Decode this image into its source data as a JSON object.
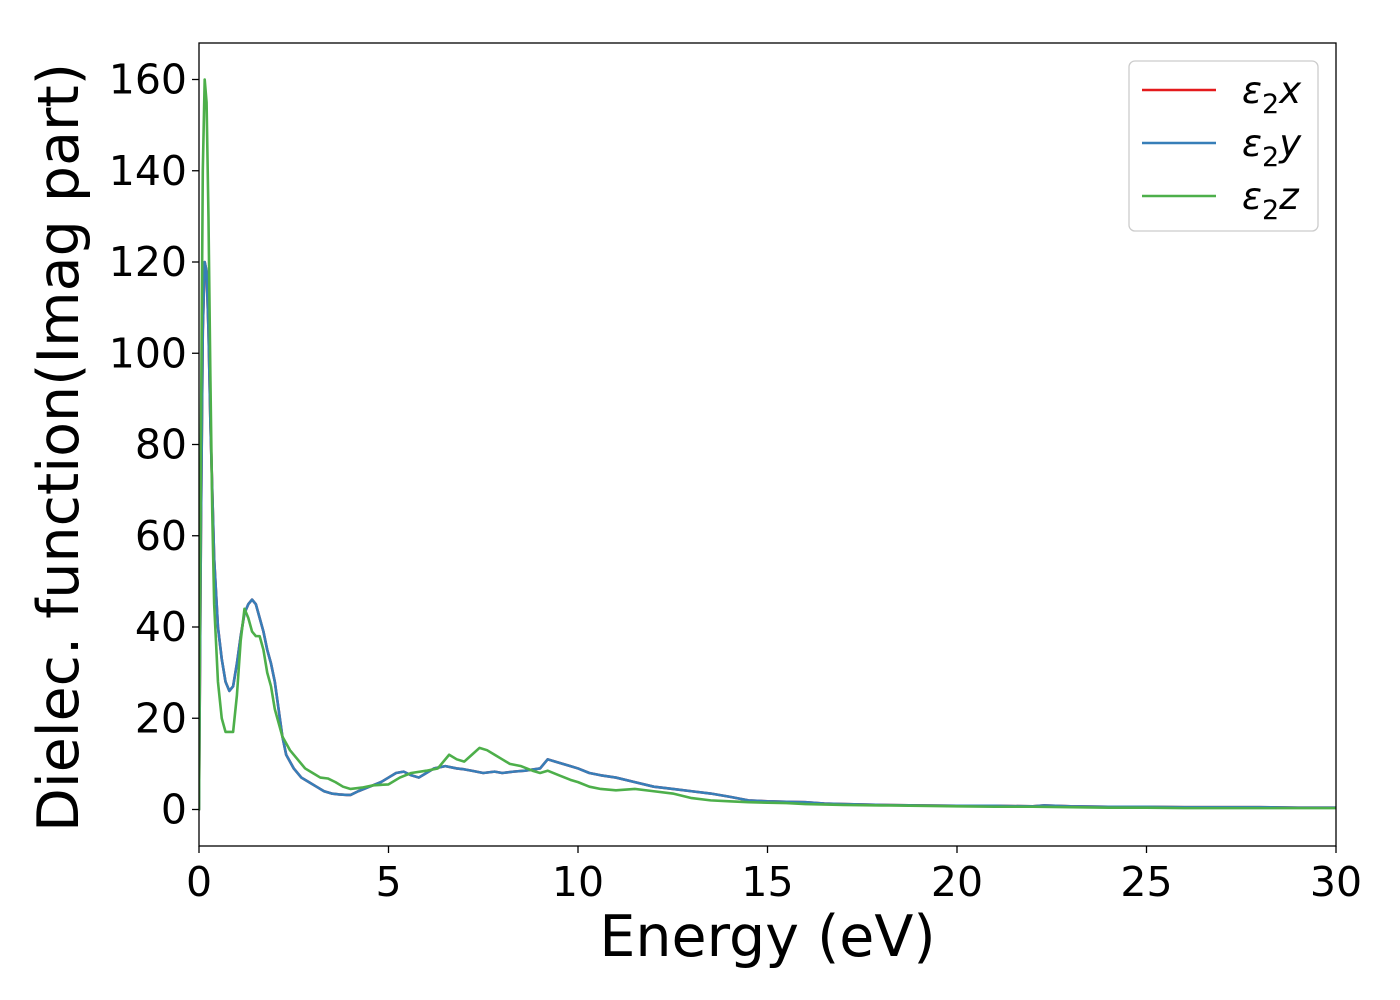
{
  "chart_data": {
    "type": "line",
    "title": "",
    "xlabel": "Energy (eV)",
    "ylabel": "Dielec. function(Imag part)",
    "xlim": [
      0,
      30
    ],
    "ylim": [
      -8,
      168
    ],
    "xticks": [
      0,
      5,
      10,
      15,
      20,
      25,
      30
    ],
    "yticks": [
      0,
      20,
      40,
      60,
      80,
      100,
      120,
      140,
      160
    ],
    "grid": false,
    "legend_position": "top-right",
    "series": [
      {
        "name": "ε2x",
        "legend_base": "ε",
        "legend_sub": "2",
        "legend_suffix": "x",
        "color": "#e41a1c",
        "x": [
          0,
          0.05,
          0.1,
          0.15,
          0.2,
          0.25,
          0.3,
          0.4,
          0.5,
          0.6,
          0.7,
          0.8,
          0.9,
          1.0,
          1.1,
          1.2,
          1.3,
          1.4,
          1.5,
          1.6,
          1.7,
          1.8,
          1.9,
          2.0,
          2.1,
          2.2,
          2.3,
          2.5,
          2.7,
          2.9,
          3.1,
          3.3,
          3.5,
          3.7,
          3.9,
          4.0,
          4.2,
          4.5,
          4.8,
          5.0,
          5.2,
          5.4,
          5.6,
          5.8,
          6.0,
          6.2,
          6.5,
          6.8,
          7.0,
          7.2,
          7.5,
          7.8,
          8.0,
          8.3,
          8.6,
          9.0,
          9.2,
          9.4,
          9.6,
          9.8,
          10.0,
          10.3,
          10.6,
          11.0,
          11.5,
          12.0,
          12.5,
          13.0,
          13.5,
          14.0,
          14.5,
          15.0,
          15.5,
          16.0,
          16.5,
          17.0,
          18.0,
          19.0,
          20.0,
          21.0,
          22.0,
          22.3,
          23.0,
          24.0,
          25.0,
          26.0,
          27.0,
          28.0,
          29.0,
          30.0
        ],
        "y": [
          0,
          60,
          105,
          120,
          118,
          105,
          85,
          55,
          40,
          33,
          28,
          26,
          27,
          32,
          38,
          43,
          45,
          46,
          45,
          42,
          39,
          35,
          32,
          28,
          22,
          16,
          12,
          9,
          7,
          6,
          5,
          4,
          3.5,
          3.3,
          3.2,
          3.2,
          4,
          5,
          6,
          7,
          8,
          8.3,
          7.5,
          7,
          8,
          9,
          9.5,
          9,
          8.8,
          8.5,
          8,
          8.3,
          8,
          8.3,
          8.5,
          9,
          11,
          10.5,
          10,
          9.5,
          9,
          8,
          7.5,
          7,
          6,
          5,
          4.5,
          4,
          3.5,
          2.8,
          2,
          1.8,
          1.7,
          1.6,
          1.3,
          1.2,
          1.0,
          0.9,
          0.8,
          0.8,
          0.7,
          0.9,
          0.7,
          0.6,
          0.6,
          0.5,
          0.5,
          0.5,
          0.4,
          0.4
        ]
      },
      {
        "name": "ε2y",
        "legend_base": "ε",
        "legend_sub": "2",
        "legend_suffix": "y",
        "color": "#377eb8",
        "x": [
          0,
          0.05,
          0.1,
          0.15,
          0.2,
          0.25,
          0.3,
          0.4,
          0.5,
          0.6,
          0.7,
          0.8,
          0.9,
          1.0,
          1.1,
          1.2,
          1.3,
          1.4,
          1.5,
          1.6,
          1.7,
          1.8,
          1.9,
          2.0,
          2.1,
          2.2,
          2.3,
          2.5,
          2.7,
          2.9,
          3.1,
          3.3,
          3.5,
          3.7,
          3.9,
          4.0,
          4.2,
          4.5,
          4.8,
          5.0,
          5.2,
          5.4,
          5.6,
          5.8,
          6.0,
          6.2,
          6.5,
          6.8,
          7.0,
          7.2,
          7.5,
          7.8,
          8.0,
          8.3,
          8.6,
          9.0,
          9.2,
          9.4,
          9.6,
          9.8,
          10.0,
          10.3,
          10.6,
          11.0,
          11.5,
          12.0,
          12.5,
          13.0,
          13.5,
          14.0,
          14.5,
          15.0,
          15.5,
          16.0,
          16.5,
          17.0,
          18.0,
          19.0,
          20.0,
          21.0,
          22.0,
          22.3,
          23.0,
          24.0,
          25.0,
          26.0,
          27.0,
          28.0,
          29.0,
          30.0
        ],
        "y": [
          0,
          60,
          105,
          120,
          118,
          105,
          85,
          55,
          40,
          33,
          28,
          26,
          27,
          32,
          38,
          43,
          45,
          46,
          45,
          42,
          39,
          35,
          32,
          28,
          22,
          16,
          12,
          9,
          7,
          6,
          5,
          4,
          3.5,
          3.3,
          3.2,
          3.2,
          4,
          5,
          6,
          7,
          8,
          8.3,
          7.5,
          7,
          8,
          9,
          9.5,
          9,
          8.8,
          8.5,
          8,
          8.3,
          8,
          8.3,
          8.5,
          9,
          11,
          10.5,
          10,
          9.5,
          9,
          8,
          7.5,
          7,
          6,
          5,
          4.5,
          4,
          3.5,
          2.8,
          2,
          1.8,
          1.7,
          1.6,
          1.3,
          1.2,
          1.0,
          0.9,
          0.8,
          0.8,
          0.7,
          0.9,
          0.7,
          0.6,
          0.6,
          0.5,
          0.5,
          0.5,
          0.4,
          0.4
        ]
      },
      {
        "name": "ε2z",
        "legend_base": "ε",
        "legend_sub": "2",
        "legend_suffix": "z",
        "color": "#4daf4a",
        "x": [
          0,
          0.05,
          0.1,
          0.15,
          0.2,
          0.25,
          0.3,
          0.35,
          0.4,
          0.5,
          0.6,
          0.7,
          0.8,
          0.9,
          1.0,
          1.1,
          1.2,
          1.3,
          1.4,
          1.5,
          1.6,
          1.7,
          1.8,
          1.9,
          2.0,
          2.2,
          2.4,
          2.6,
          2.8,
          3.0,
          3.2,
          3.4,
          3.6,
          3.8,
          4.0,
          4.3,
          4.6,
          5.0,
          5.3,
          5.6,
          6.0,
          6.3,
          6.6,
          6.8,
          7.0,
          7.2,
          7.4,
          7.6,
          7.8,
          8.0,
          8.2,
          8.5,
          8.8,
          9.0,
          9.2,
          9.5,
          9.8,
          10.0,
          10.3,
          10.6,
          11.0,
          11.5,
          12.0,
          12.5,
          13.0,
          13.5,
          14.0,
          14.5,
          15.0,
          15.5,
          16.0,
          17.0,
          18.0,
          19.0,
          20.0,
          21.0,
          22.0,
          23.0,
          24.0,
          25.0,
          26.0,
          27.0,
          28.0,
          29.0,
          30.0
        ],
        "y": [
          0,
          80,
          140,
          160,
          155,
          130,
          95,
          65,
          45,
          28,
          20,
          17,
          17,
          17,
          25,
          37,
          44,
          42,
          39,
          38,
          38,
          35,
          30,
          27,
          22,
          16,
          13,
          11,
          9,
          8,
          7,
          6.8,
          6,
          5,
          4.5,
          4.8,
          5.3,
          5.5,
          7,
          8,
          8.5,
          9,
          12,
          11,
          10.5,
          12,
          13.5,
          13,
          12,
          11,
          10,
          9.5,
          8.5,
          8,
          8.5,
          7.5,
          6.5,
          6,
          5,
          4.5,
          4.2,
          4.5,
          4.0,
          3.5,
          2.5,
          2.0,
          1.8,
          1.6,
          1.5,
          1.4,
          1.2,
          1.0,
          0.9,
          0.8,
          0.7,
          0.6,
          0.6,
          0.5,
          0.4,
          0.4,
          0.3,
          0.3,
          0.3,
          0.3,
          0.3
        ]
      }
    ]
  }
}
